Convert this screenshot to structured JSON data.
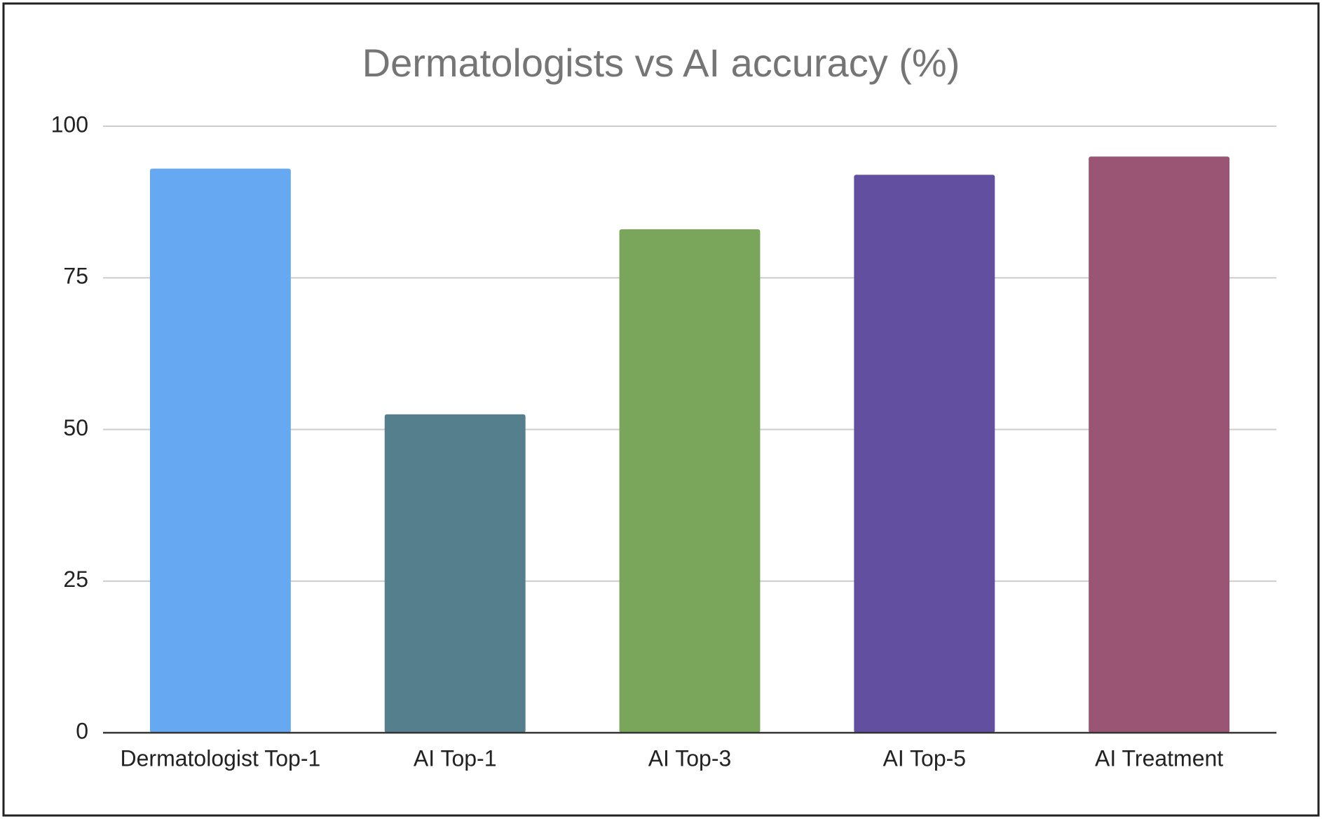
{
  "chart_data": {
    "type": "bar",
    "title": "Dermatologists vs AI accuracy (%)",
    "categories": [
      "Dermatologist Top-1",
      "AI Top-1",
      "AI Top-3",
      "AI Top-5",
      "AI Treatment"
    ],
    "values": [
      93,
      52.5,
      83,
      92,
      95
    ],
    "colors": [
      "#66a8f2",
      "#567f8d",
      "#79a65b",
      "#634fa0",
      "#9a5474"
    ],
    "ylim": [
      0,
      100
    ],
    "yticks": [
      0,
      25,
      50,
      75,
      100
    ],
    "grid": true
  }
}
